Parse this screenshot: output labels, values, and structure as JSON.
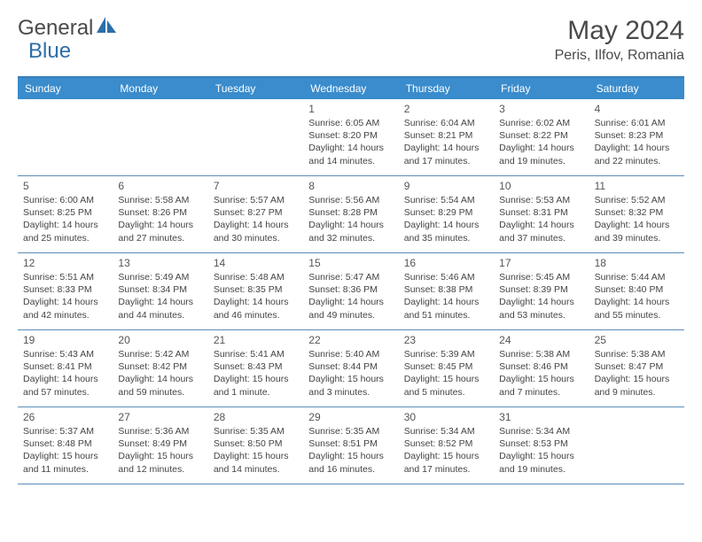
{
  "logo": {
    "text1": "General",
    "text2": "Blue"
  },
  "title": "May 2024",
  "location": "Peris, Ilfov, Romania",
  "colors": {
    "header_bg": "#3a8ccc",
    "header_text": "#ffffff",
    "border": "#5a8cb8",
    "text": "#3a3a3a",
    "logo_gray": "#4a4a4a",
    "logo_blue": "#2d6ea8"
  },
  "day_names": [
    "Sunday",
    "Monday",
    "Tuesday",
    "Wednesday",
    "Thursday",
    "Friday",
    "Saturday"
  ],
  "weeks": [
    [
      null,
      null,
      null,
      {
        "n": "1",
        "sr": "Sunrise: 6:05 AM",
        "ss": "Sunset: 8:20 PM",
        "d1": "Daylight: 14 hours",
        "d2": "and 14 minutes."
      },
      {
        "n": "2",
        "sr": "Sunrise: 6:04 AM",
        "ss": "Sunset: 8:21 PM",
        "d1": "Daylight: 14 hours",
        "d2": "and 17 minutes."
      },
      {
        "n": "3",
        "sr": "Sunrise: 6:02 AM",
        "ss": "Sunset: 8:22 PM",
        "d1": "Daylight: 14 hours",
        "d2": "and 19 minutes."
      },
      {
        "n": "4",
        "sr": "Sunrise: 6:01 AM",
        "ss": "Sunset: 8:23 PM",
        "d1": "Daylight: 14 hours",
        "d2": "and 22 minutes."
      }
    ],
    [
      {
        "n": "5",
        "sr": "Sunrise: 6:00 AM",
        "ss": "Sunset: 8:25 PM",
        "d1": "Daylight: 14 hours",
        "d2": "and 25 minutes."
      },
      {
        "n": "6",
        "sr": "Sunrise: 5:58 AM",
        "ss": "Sunset: 8:26 PM",
        "d1": "Daylight: 14 hours",
        "d2": "and 27 minutes."
      },
      {
        "n": "7",
        "sr": "Sunrise: 5:57 AM",
        "ss": "Sunset: 8:27 PM",
        "d1": "Daylight: 14 hours",
        "d2": "and 30 minutes."
      },
      {
        "n": "8",
        "sr": "Sunrise: 5:56 AM",
        "ss": "Sunset: 8:28 PM",
        "d1": "Daylight: 14 hours",
        "d2": "and 32 minutes."
      },
      {
        "n": "9",
        "sr": "Sunrise: 5:54 AM",
        "ss": "Sunset: 8:29 PM",
        "d1": "Daylight: 14 hours",
        "d2": "and 35 minutes."
      },
      {
        "n": "10",
        "sr": "Sunrise: 5:53 AM",
        "ss": "Sunset: 8:31 PM",
        "d1": "Daylight: 14 hours",
        "d2": "and 37 minutes."
      },
      {
        "n": "11",
        "sr": "Sunrise: 5:52 AM",
        "ss": "Sunset: 8:32 PM",
        "d1": "Daylight: 14 hours",
        "d2": "and 39 minutes."
      }
    ],
    [
      {
        "n": "12",
        "sr": "Sunrise: 5:51 AM",
        "ss": "Sunset: 8:33 PM",
        "d1": "Daylight: 14 hours",
        "d2": "and 42 minutes."
      },
      {
        "n": "13",
        "sr": "Sunrise: 5:49 AM",
        "ss": "Sunset: 8:34 PM",
        "d1": "Daylight: 14 hours",
        "d2": "and 44 minutes."
      },
      {
        "n": "14",
        "sr": "Sunrise: 5:48 AM",
        "ss": "Sunset: 8:35 PM",
        "d1": "Daylight: 14 hours",
        "d2": "and 46 minutes."
      },
      {
        "n": "15",
        "sr": "Sunrise: 5:47 AM",
        "ss": "Sunset: 8:36 PM",
        "d1": "Daylight: 14 hours",
        "d2": "and 49 minutes."
      },
      {
        "n": "16",
        "sr": "Sunrise: 5:46 AM",
        "ss": "Sunset: 8:38 PM",
        "d1": "Daylight: 14 hours",
        "d2": "and 51 minutes."
      },
      {
        "n": "17",
        "sr": "Sunrise: 5:45 AM",
        "ss": "Sunset: 8:39 PM",
        "d1": "Daylight: 14 hours",
        "d2": "and 53 minutes."
      },
      {
        "n": "18",
        "sr": "Sunrise: 5:44 AM",
        "ss": "Sunset: 8:40 PM",
        "d1": "Daylight: 14 hours",
        "d2": "and 55 minutes."
      }
    ],
    [
      {
        "n": "19",
        "sr": "Sunrise: 5:43 AM",
        "ss": "Sunset: 8:41 PM",
        "d1": "Daylight: 14 hours",
        "d2": "and 57 minutes."
      },
      {
        "n": "20",
        "sr": "Sunrise: 5:42 AM",
        "ss": "Sunset: 8:42 PM",
        "d1": "Daylight: 14 hours",
        "d2": "and 59 minutes."
      },
      {
        "n": "21",
        "sr": "Sunrise: 5:41 AM",
        "ss": "Sunset: 8:43 PM",
        "d1": "Daylight: 15 hours",
        "d2": "and 1 minute."
      },
      {
        "n": "22",
        "sr": "Sunrise: 5:40 AM",
        "ss": "Sunset: 8:44 PM",
        "d1": "Daylight: 15 hours",
        "d2": "and 3 minutes."
      },
      {
        "n": "23",
        "sr": "Sunrise: 5:39 AM",
        "ss": "Sunset: 8:45 PM",
        "d1": "Daylight: 15 hours",
        "d2": "and 5 minutes."
      },
      {
        "n": "24",
        "sr": "Sunrise: 5:38 AM",
        "ss": "Sunset: 8:46 PM",
        "d1": "Daylight: 15 hours",
        "d2": "and 7 minutes."
      },
      {
        "n": "25",
        "sr": "Sunrise: 5:38 AM",
        "ss": "Sunset: 8:47 PM",
        "d1": "Daylight: 15 hours",
        "d2": "and 9 minutes."
      }
    ],
    [
      {
        "n": "26",
        "sr": "Sunrise: 5:37 AM",
        "ss": "Sunset: 8:48 PM",
        "d1": "Daylight: 15 hours",
        "d2": "and 11 minutes."
      },
      {
        "n": "27",
        "sr": "Sunrise: 5:36 AM",
        "ss": "Sunset: 8:49 PM",
        "d1": "Daylight: 15 hours",
        "d2": "and 12 minutes."
      },
      {
        "n": "28",
        "sr": "Sunrise: 5:35 AM",
        "ss": "Sunset: 8:50 PM",
        "d1": "Daylight: 15 hours",
        "d2": "and 14 minutes."
      },
      {
        "n": "29",
        "sr": "Sunrise: 5:35 AM",
        "ss": "Sunset: 8:51 PM",
        "d1": "Daylight: 15 hours",
        "d2": "and 16 minutes."
      },
      {
        "n": "30",
        "sr": "Sunrise: 5:34 AM",
        "ss": "Sunset: 8:52 PM",
        "d1": "Daylight: 15 hours",
        "d2": "and 17 minutes."
      },
      {
        "n": "31",
        "sr": "Sunrise: 5:34 AM",
        "ss": "Sunset: 8:53 PM",
        "d1": "Daylight: 15 hours",
        "d2": "and 19 minutes."
      },
      null
    ]
  ]
}
